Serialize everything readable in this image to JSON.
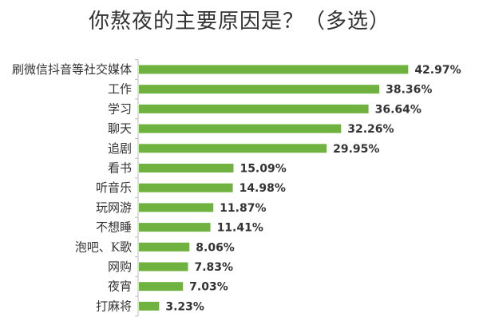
{
  "chart_data": {
    "type": "bar",
    "orientation": "horizontal",
    "title": "你熬夜的主要原因是？（多选）",
    "categories": [
      "刷微信抖音等社交媒体",
      "工作",
      "学习",
      "聊天",
      "追剧",
      "看书",
      "听音乐",
      "玩网游",
      "不想睡",
      "泡吧、K歌",
      "网购",
      "夜宵",
      "打麻将"
    ],
    "values": [
      42.97,
      38.36,
      36.64,
      32.26,
      29.95,
      15.09,
      14.98,
      11.87,
      11.41,
      8.06,
      7.83,
      7.03,
      3.23
    ],
    "value_labels": [
      "42.97%",
      "38.36%",
      "36.64%",
      "32.26%",
      "29.95%",
      "15.09%",
      "14.98%",
      "11.87%",
      "11.41%",
      "8.06%",
      "7.83%",
      "7.03%",
      "3.23%"
    ],
    "xlim": [
      0,
      50
    ],
    "grid": false,
    "legend": "none",
    "bar_color": "#6fb23f",
    "axis_color": "#bbbbbb"
  }
}
